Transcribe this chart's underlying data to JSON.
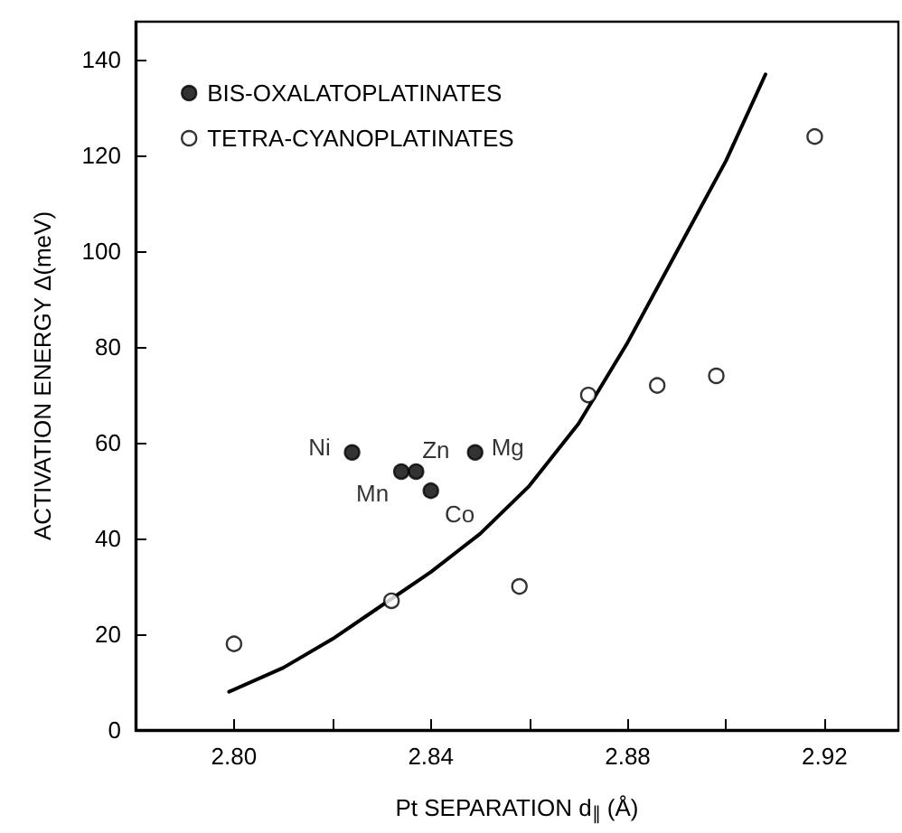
{
  "chart_data": {
    "type": "scatter",
    "xlabel": "Pt SEPARATION d$_{∥}$ (Å)",
    "ylabel": "ACTIVATION ENERGY Δ(meV)",
    "xlim": [
      2.78,
      2.935
    ],
    "xticks": [
      {
        "value": 2.8,
        "label": "2.80"
      },
      {
        "value": 2.82,
        "label": null
      },
      {
        "value": 2.84,
        "label": "2.84"
      },
      {
        "value": 2.86,
        "label": null
      },
      {
        "value": 2.88,
        "label": "2.88"
      },
      {
        "value": 2.9,
        "label": null
      },
      {
        "value": 2.92,
        "label": "2.92"
      }
    ],
    "ylim": [
      0,
      148
    ],
    "yticks": [
      0,
      20,
      40,
      60,
      80,
      100,
      120,
      140
    ],
    "legend": "top left",
    "grid": false,
    "series": [
      {
        "name": "BIS-OXALATOPLATINATES",
        "color": "#000000",
        "marker": "circle",
        "x": [
          2.824,
          2.834,
          2.837,
          2.84,
          2.849
        ],
        "values": [
          58,
          54,
          54,
          50,
          58
        ]
      },
      {
        "name": "TETRA-CYANOPLATINATES",
        "color": "#ffffff",
        "marker": "circle",
        "x": [
          2.8,
          2.832,
          2.858,
          2.872,
          2.886,
          2.898,
          2.918
        ],
        "values": [
          18,
          27,
          30,
          70,
          72,
          74,
          124
        ]
      },
      {
        "type": "line",
        "color": "#000000",
        "marker": "none",
        "line_style": "solid",
        "x": [
          2.799,
          2.81,
          2.82,
          2.83,
          2.84,
          2.85,
          2.86,
          2.87,
          2.88,
          2.89,
          2.9,
          2.908
        ],
        "values": [
          8,
          13,
          19,
          26,
          33,
          41,
          51,
          64,
          81,
          100,
          119,
          137
        ]
      }
    ],
    "annotations": [
      {
        "text": "Ni",
        "x": 2.824,
        "y": 58
      },
      {
        "text": "Mn",
        "x": 2.834,
        "y": 54
      },
      {
        "text": "Zn",
        "x": 2.837,
        "y": 54
      },
      {
        "text": "Co",
        "x": 2.84,
        "y": 50
      },
      {
        "text": "Mg",
        "x": 2.849,
        "y": 58
      }
    ]
  }
}
